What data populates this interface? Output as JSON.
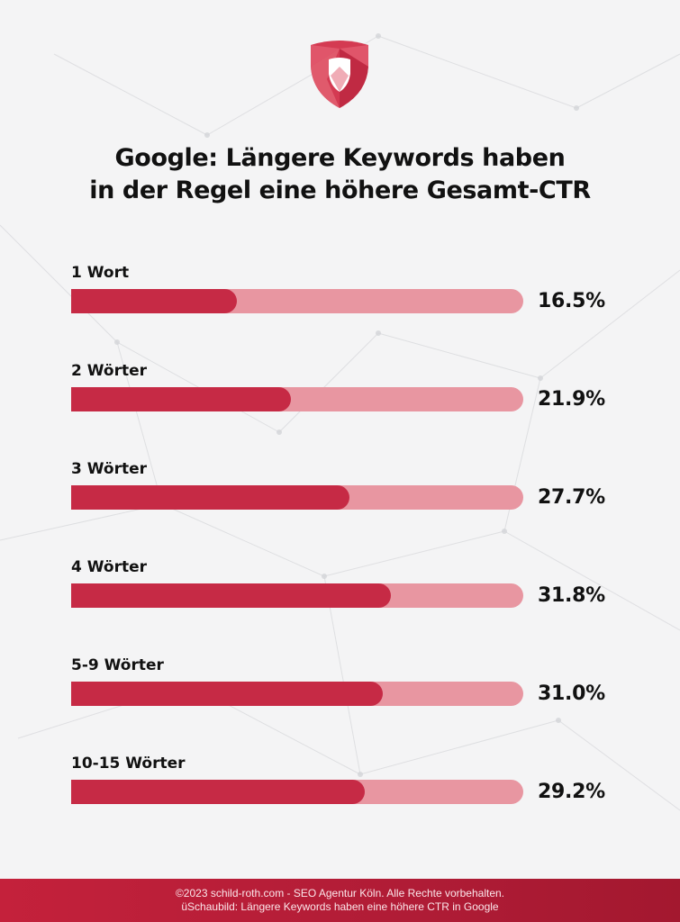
{
  "chart_data": {
    "type": "bar",
    "orientation": "horizontal",
    "title": "Google: Längere Keywords haben in der Regel eine höhere Gesamt-CTR",
    "title_lines": [
      "Google: Längere Keywords haben",
      "in der Regel eine höhere Gesamt-CTR"
    ],
    "categories": [
      "1 Wort",
      "2 Wörter",
      "3 Wörter",
      "4 Wörter",
      "5-9 Wörter",
      "10-15 Wörter"
    ],
    "values": [
      16.5,
      21.9,
      27.7,
      31.8,
      31.0,
      29.2
    ],
    "value_labels": [
      "16.5%",
      "21.9%",
      "27.7%",
      "31.8%",
      "31.0%",
      "29.2%"
    ],
    "unit": "%",
    "xlim": [
      0,
      45
    ],
    "grid": false,
    "colors": {
      "fill": "#c62a45",
      "track": "#e896a1"
    }
  },
  "logo": {
    "icon": "shield-logo-icon",
    "color": "#d43a52"
  },
  "footer": {
    "line1": "©2023 schild-roth.com - SEO Agentur Köln. Alle Rechte vorbehalten.",
    "line2": "üSchaubild: Längere Keywords haben eine höhere CTR in Google",
    "color": "#c4213b"
  }
}
